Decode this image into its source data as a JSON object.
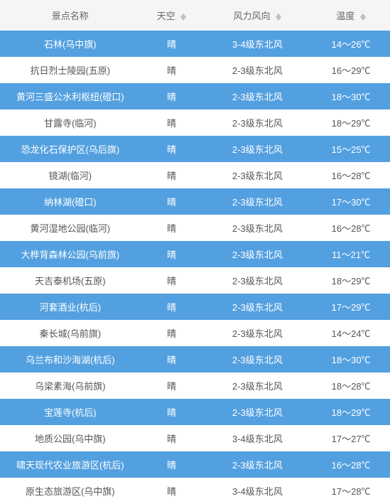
{
  "colors": {
    "header_bg": "#f5f5f5",
    "header_text": "#666666",
    "blue_row_bg": "#53a0e0",
    "blue_row_text": "#ffffff",
    "white_row_bg": "#ffffff",
    "white_row_text": "#555555",
    "sort_arrow": "#bfbfbf"
  },
  "columns": [
    {
      "key": "name",
      "label": "景点名称",
      "sortable": false
    },
    {
      "key": "sky",
      "label": "天空",
      "sortable": true
    },
    {
      "key": "wind",
      "label": "风力风向",
      "sortable": true
    },
    {
      "key": "temp",
      "label": "温度",
      "sortable": true
    }
  ],
  "rows": [
    {
      "name": "石林(乌中旗)",
      "sky": "晴",
      "wind": "3-4级东北风",
      "temp": "14～26℃"
    },
    {
      "name": "抗日烈士陵园(五原)",
      "sky": "晴",
      "wind": "2-3级东北风",
      "temp": "16～29℃"
    },
    {
      "name": "黄河三盛公水利枢纽(磴口)",
      "sky": "晴",
      "wind": "2-3级东北风",
      "temp": "18～30℃"
    },
    {
      "name": "甘露寺(临河)",
      "sky": "晴",
      "wind": "2-3级东北风",
      "temp": "18～29℃"
    },
    {
      "name": "恐龙化石保护区(乌后旗)",
      "sky": "晴",
      "wind": "2-3级东北风",
      "temp": "15～25℃"
    },
    {
      "name": "镜湖(临河)",
      "sky": "晴",
      "wind": "2-3级东北风",
      "temp": "16～28℃"
    },
    {
      "name": "纳林湖(磴口)",
      "sky": "晴",
      "wind": "2-3级东北风",
      "temp": "17～30℃"
    },
    {
      "name": "黄河湿地公园(临河)",
      "sky": "晴",
      "wind": "2-3级东北风",
      "temp": "16～28℃"
    },
    {
      "name": "大桦背森林公园(乌前旗)",
      "sky": "晴",
      "wind": "2-3级东北风",
      "temp": "11～21℃"
    },
    {
      "name": "天吉泰机场(五原)",
      "sky": "晴",
      "wind": "2-3级东北风",
      "temp": "18～29℃"
    },
    {
      "name": "河套酒业(杭后)",
      "sky": "晴",
      "wind": "2-3级东北风",
      "temp": "17～29℃"
    },
    {
      "name": "秦长城(乌前旗)",
      "sky": "晴",
      "wind": "2-3级东北风",
      "temp": "14～24℃"
    },
    {
      "name": "乌兰布和沙海湖(杭后)",
      "sky": "晴",
      "wind": "2-3级东北风",
      "temp": "18～30℃"
    },
    {
      "name": "乌梁素海(乌前旗)",
      "sky": "晴",
      "wind": "2-3级东北风",
      "temp": "18～28℃"
    },
    {
      "name": "宝莲寺(杭后)",
      "sky": "晴",
      "wind": "2-3级东北风",
      "temp": "18～29℃"
    },
    {
      "name": "地质公园(乌中旗)",
      "sky": "晴",
      "wind": "3-4级东北风",
      "temp": "17～27℃"
    },
    {
      "name": "啸天现代农业旅游区(杭后)",
      "sky": "晴",
      "wind": "2-3级东北风",
      "temp": "16～28℃"
    },
    {
      "name": "原生态旅游区(乌中旗)",
      "sky": "晴",
      "wind": "3-4级东北风",
      "temp": "17～28℃"
    }
  ]
}
